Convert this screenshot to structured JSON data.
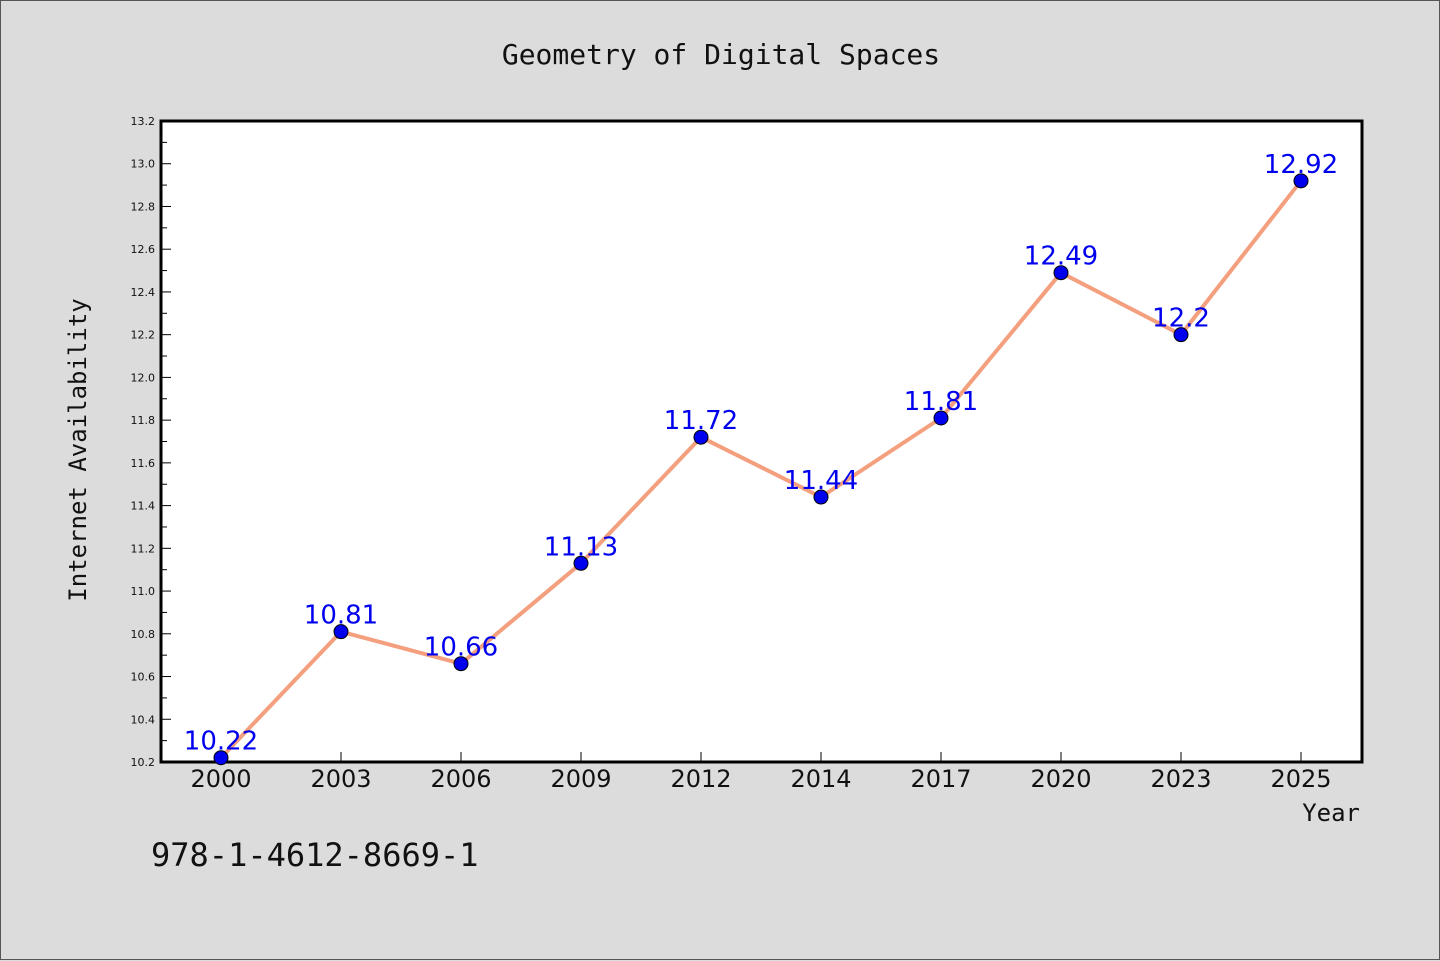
{
  "chart_data": {
    "type": "line",
    "title": "Geometry of Digital Spaces",
    "xlabel": "Year",
    "ylabel": "Internet Availability",
    "categories": [
      "2000",
      "2003",
      "2006",
      "2009",
      "2012",
      "2014",
      "2017",
      "2020",
      "2023",
      "2025"
    ],
    "series": [
      {
        "values": [
          10.22,
          10.81,
          10.66,
          11.13,
          11.72,
          11.44,
          11.81,
          12.49,
          12.2,
          12.92
        ],
        "labels": [
          "10.22",
          "10.81",
          "10.66",
          "11.13",
          "11.72",
          "11.44",
          "11.81",
          "12.49",
          "12.2",
          "12.92"
        ]
      }
    ],
    "ylim": [
      10.2,
      13.2
    ],
    "yticks": [
      "10.2",
      "10.4",
      "10.6",
      "10.8",
      "11.0",
      "11.2",
      "11.4",
      "11.6",
      "11.8",
      "12.0",
      "12.2",
      "12.4",
      "12.6",
      "12.8",
      "13.0",
      "13.2"
    ],
    "grid": false,
    "legend": "none",
    "line_color": "#f4a07e",
    "marker_color": "#0000ee",
    "label_color": "#0000ee"
  },
  "footer": {
    "isbn": "978-1-4612-8669-1"
  }
}
